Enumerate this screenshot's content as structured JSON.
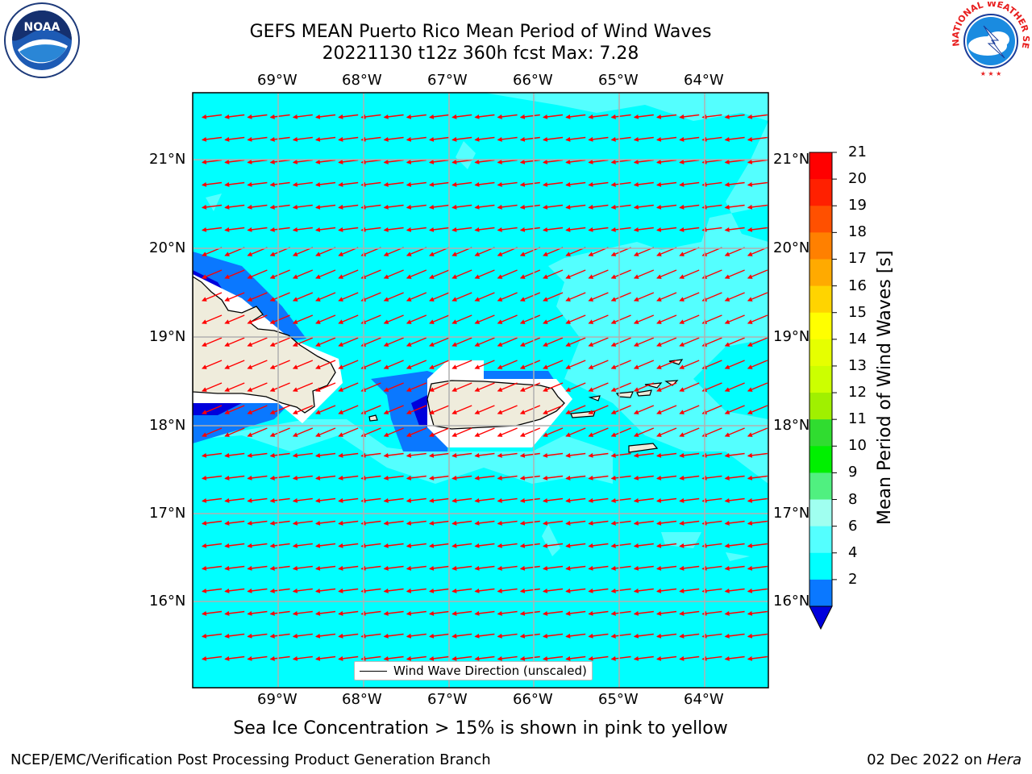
{
  "title": {
    "line1": "GEFS MEAN Puerto Rico Mean Period of Wind Waves",
    "line2": "20221130 t12z 360h fcst   Max: 7.28"
  },
  "map": {
    "lon_labels": [
      "69°W",
      "68°W",
      "67°W",
      "66°W",
      "65°W",
      "64°W"
    ],
    "lat_labels": [
      "21°N",
      "20°N",
      "19°N",
      "18°N",
      "17°N",
      "16°N"
    ],
    "ocean_color": "#00ffff",
    "lighter_field_color": "#54ffff",
    "low_period_color": "#0a78ff",
    "lowest_period_color": "#0000dc",
    "land_color": "#efecdc",
    "arrow_color": "#ff0000",
    "legend_label": "Wind Wave Direction (unscaled)"
  },
  "colorbar": {
    "ticks": [
      "21",
      "20",
      "19",
      "18",
      "17",
      "16",
      "15",
      "14",
      "13",
      "12",
      "11",
      "10",
      "9",
      "8",
      "6",
      "4",
      "2"
    ],
    "colors": [
      "#ff0000",
      "#ff2000",
      "#ff5000",
      "#ff8000",
      "#ffaa00",
      "#ffd400",
      "#ffff00",
      "#e6ff00",
      "#ccff00",
      "#a0f000",
      "#30dc30",
      "#00f000",
      "#50f080",
      "#a0fff0",
      "#54ffff",
      "#00ffff",
      "#0a78ff"
    ],
    "under_color": "#0000dc",
    "title": "Mean Period of Wind Waves [s]"
  },
  "caption": "Sea Ice Concentration > 15% is shown in pink to yellow",
  "footer": {
    "left": "NCEP/EMC/Verification Post Processing Product Generation Branch",
    "right_date": "02 Dec 2022 on ",
    "right_machine": "Hera"
  },
  "logos": {
    "noaa_text": "NOAA",
    "nws_text": "NATIONAL WEATHER SERVICE"
  }
}
